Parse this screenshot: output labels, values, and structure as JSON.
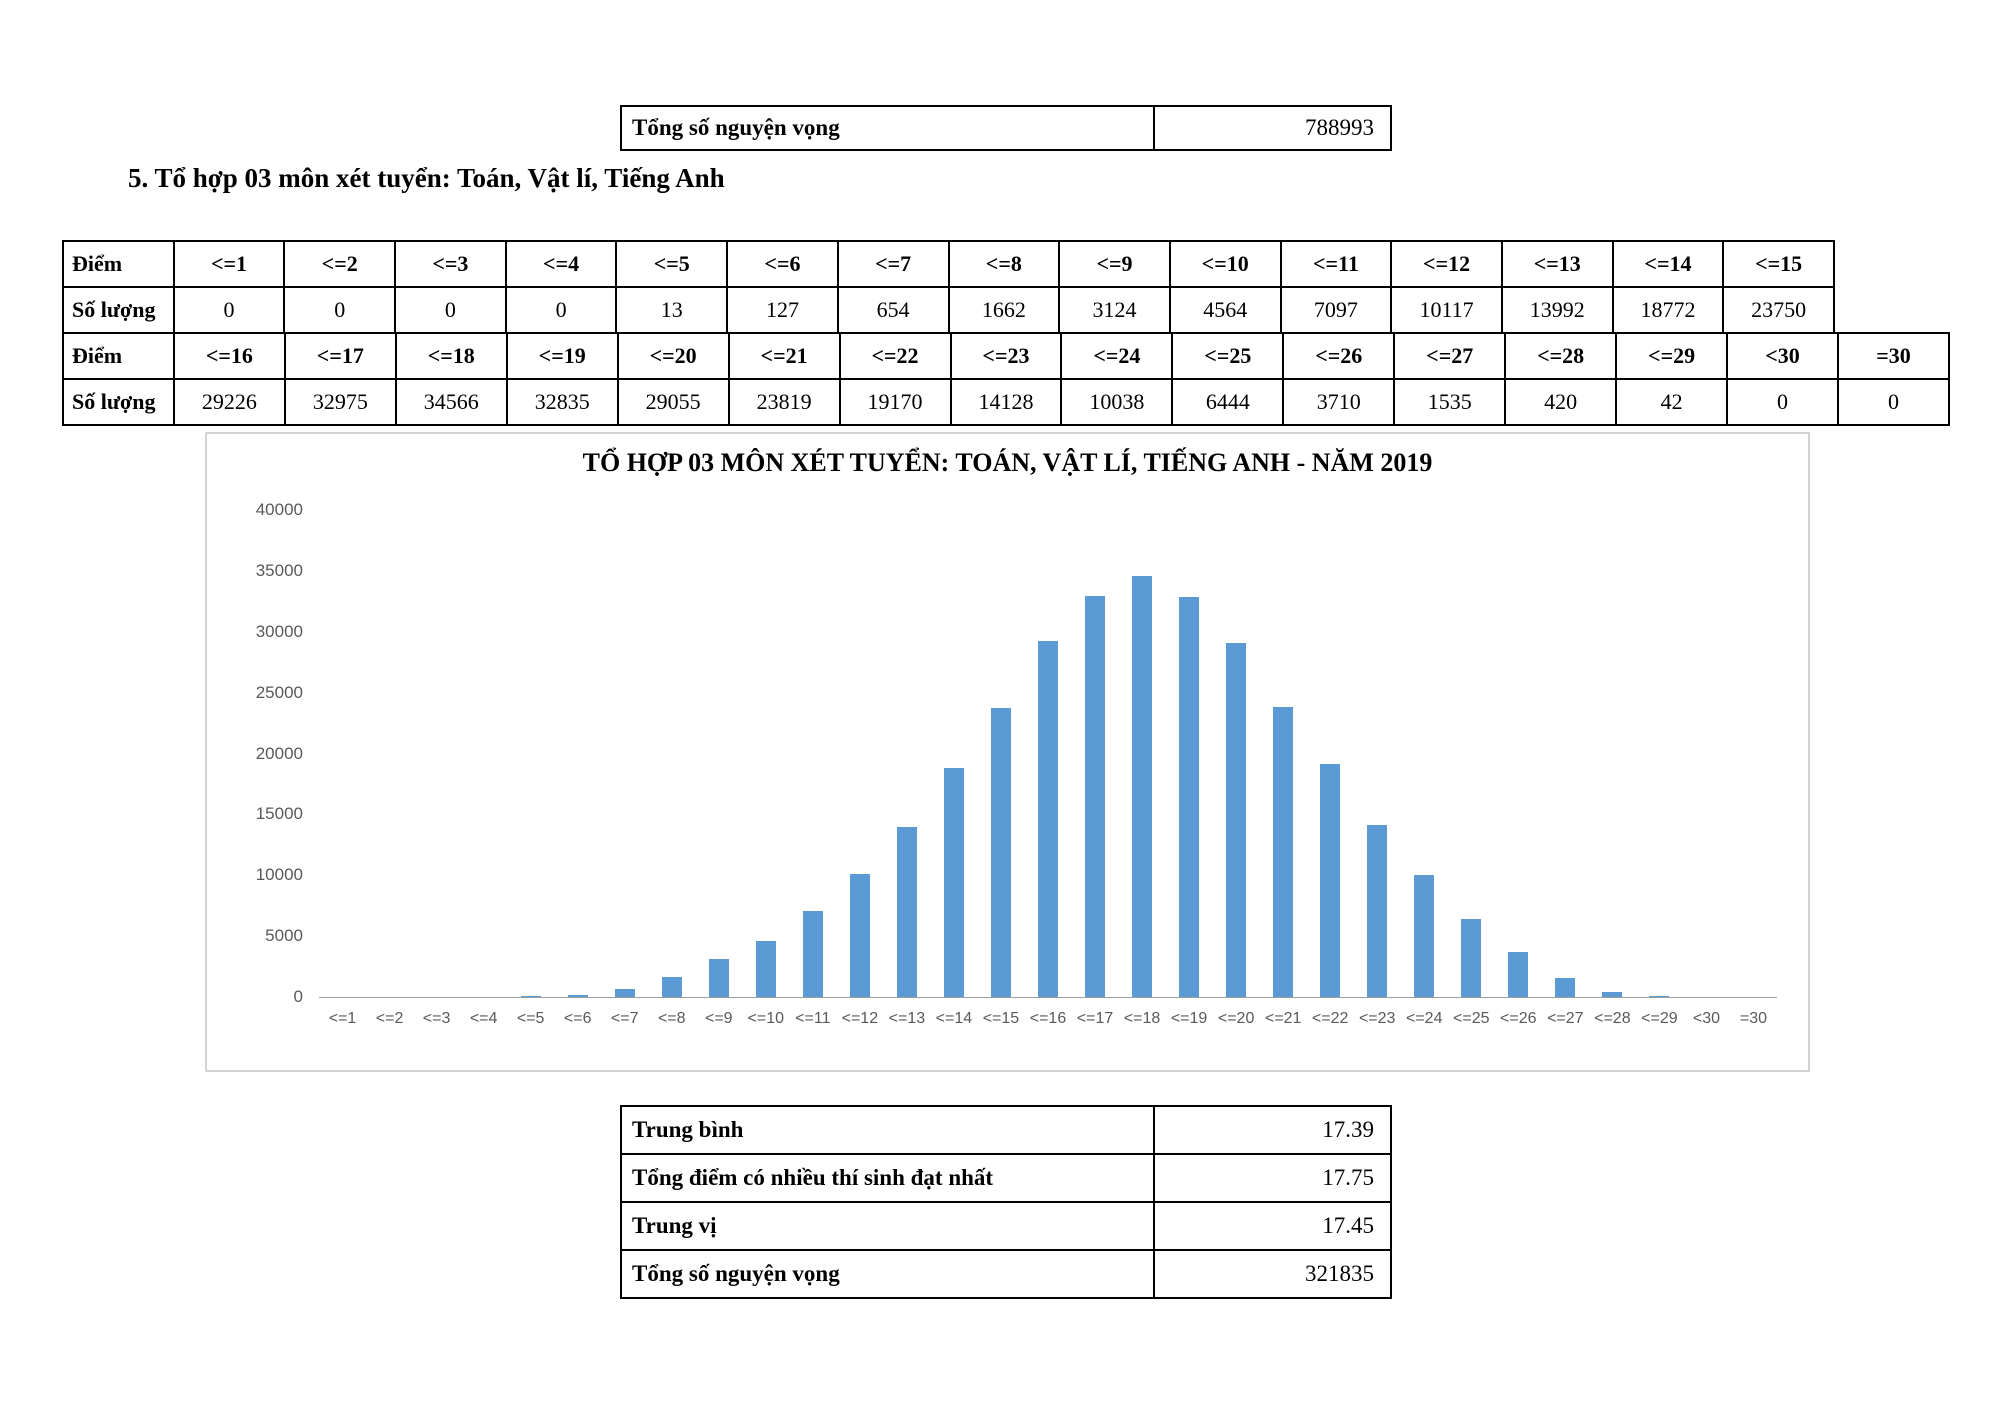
{
  "top_table": {
    "label": "Tổng số nguyện vọng",
    "value": "788993"
  },
  "section_heading": "5. Tổ hợp 03 môn xét tuyển: Toán, Vật lí, Tiếng Anh",
  "score_table": {
    "score_row_label": "Điểm",
    "count_row_label": "Số lượng",
    "part1": {
      "scores": [
        "<=1",
        "<=2",
        "<=3",
        "<=4",
        "<=5",
        "<=6",
        "<=7",
        "<=8",
        "<=9",
        "<=10",
        "<=11",
        "<=12",
        "<=13",
        "<=14",
        "<=15"
      ],
      "counts": [
        "0",
        "0",
        "0",
        "0",
        "13",
        "127",
        "654",
        "1662",
        "3124",
        "4564",
        "7097",
        "10117",
        "13992",
        "18772",
        "23750"
      ]
    },
    "part2": {
      "scores": [
        "<=16",
        "<=17",
        "<=18",
        "<=19",
        "<=20",
        "<=21",
        "<=22",
        "<=23",
        "<=24",
        "<=25",
        "<=26",
        "<=27",
        "<=28",
        "<=29",
        "<30",
        "=30"
      ],
      "counts": [
        "29226",
        "32975",
        "34566",
        "32835",
        "29055",
        "23819",
        "19170",
        "14128",
        "10038",
        "6444",
        "3710",
        "1535",
        "420",
        "42",
        "0",
        "0"
      ]
    }
  },
  "chart_data": {
    "type": "bar",
    "title": "TỔ HỢP 03 MÔN XÉT TUYỂN: TOÁN, VẬT LÍ, TIẾNG ANH - NĂM 2019",
    "categories": [
      "<=1",
      "<=2",
      "<=3",
      "<=4",
      "<=5",
      "<=6",
      "<=7",
      "<=8",
      "<=9",
      "<=10",
      "<=11",
      "<=12",
      "<=13",
      "<=14",
      "<=15",
      "<=16",
      "<=17",
      "<=18",
      "<=19",
      "<=20",
      "<=21",
      "<=22",
      "<=23",
      "<=24",
      "<=25",
      "<=26",
      "<=27",
      "<=28",
      "<=29",
      "<30",
      "=30"
    ],
    "values": [
      0,
      0,
      0,
      0,
      13,
      127,
      654,
      1662,
      3124,
      4564,
      7097,
      10117,
      13992,
      18772,
      23750,
      29226,
      32975,
      34566,
      32835,
      29055,
      23819,
      19170,
      14128,
      10038,
      6444,
      3710,
      1535,
      420,
      42,
      0,
      0
    ],
    "ylim": [
      0,
      40000
    ],
    "ytick_step": 5000,
    "yticks": [
      "40000",
      "35000",
      "30000",
      "25000",
      "20000",
      "15000",
      "10000",
      "5000",
      "0"
    ],
    "bar_color": "#5B9BD5",
    "axis_label_color": "#595959",
    "grid": false,
    "legend": "none"
  },
  "summary_table": {
    "rows": [
      {
        "label": "Trung bình",
        "value": "17.39"
      },
      {
        "label": "Tổng điểm có nhiều thí sinh đạt nhất",
        "value": "17.75"
      },
      {
        "label": "Trung vị",
        "value": "17.45"
      },
      {
        "label": "Tổng số nguyện vọng",
        "value": "321835"
      }
    ]
  }
}
